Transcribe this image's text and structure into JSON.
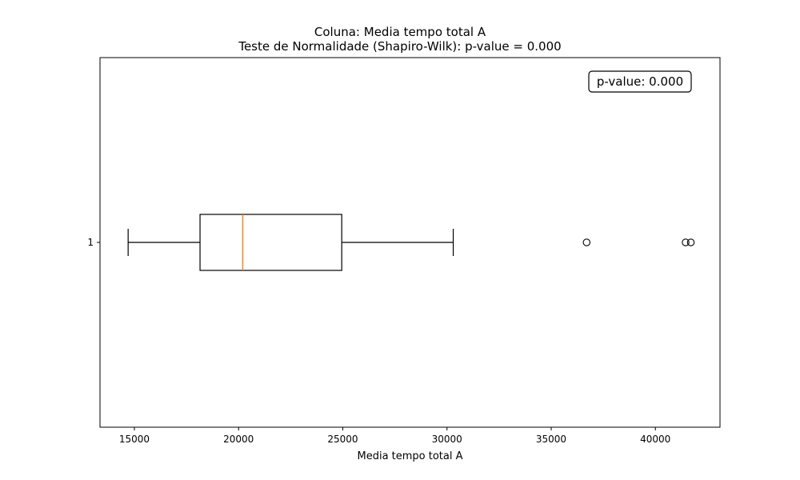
{
  "chart_data": {
    "type": "box",
    "title_line1": "Coluna: Media tempo total A",
    "title_line2": "Teste de Normalidade (Shapiro-Wilk): p-value = 0.000",
    "xlabel": "Media tempo total A",
    "ylabel": "",
    "xlim": [
      13350,
      43100
    ],
    "x_ticks": [
      15000,
      20000,
      25000,
      30000,
      35000,
      40000
    ],
    "y_ticks": [
      "1"
    ],
    "grid": false,
    "orientation": "horizontal",
    "annotation": {
      "text": "p-value: 0.000",
      "placement": "top-right"
    },
    "box": {
      "category": "1",
      "whisker_low": 14700,
      "q1": 18150,
      "median": 20200,
      "q3": 24950,
      "whisker_high": 30300,
      "outliers": [
        36700,
        41450,
        41700
      ]
    },
    "colors": {
      "box": "#000000",
      "median": "#ff7f0e",
      "outlier": "#000000"
    }
  }
}
